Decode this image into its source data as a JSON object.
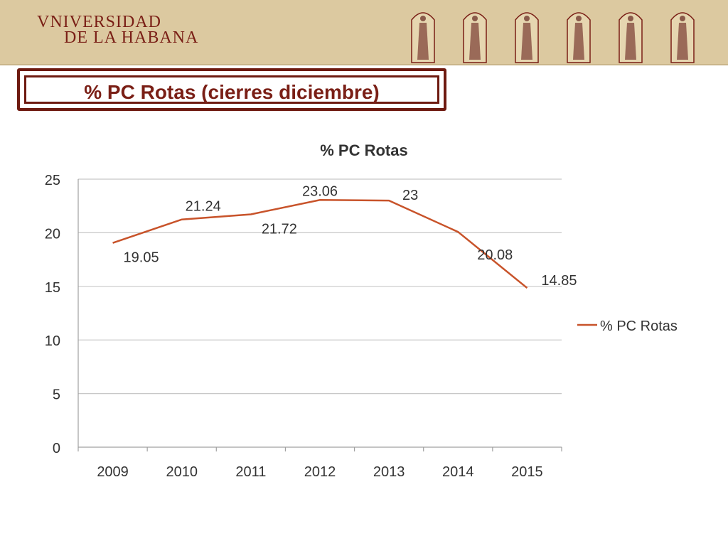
{
  "header": {
    "logo_line1": "VNIVERSIDAD",
    "logo_line2": "DE LA HABANA"
  },
  "slide_title": "% PC Rotas (cierres diciembre)",
  "colors": {
    "banner": "#dcc9a0",
    "accent": "#7a1f16",
    "series": "#c8532a",
    "grid": "#c8c8c8"
  },
  "chart_data": {
    "type": "line",
    "title": "% PC Rotas",
    "xlabel": "",
    "ylabel": "",
    "categories": [
      "2009",
      "2010",
      "2011",
      "2012",
      "2013",
      "2014",
      "2015"
    ],
    "series": [
      {
        "name": "% PC Rotas",
        "values": [
          19.05,
          21.24,
          21.72,
          23.06,
          23,
          20.08,
          14.85
        ]
      }
    ],
    "data_labels": [
      "19.05",
      "21.24",
      "21.72",
      "23.06",
      "23",
      "20.08",
      "14.85"
    ],
    "ylim": [
      0,
      25
    ],
    "yticks": [
      0,
      5,
      10,
      15,
      20,
      25
    ],
    "grid": true,
    "legend": "right"
  }
}
